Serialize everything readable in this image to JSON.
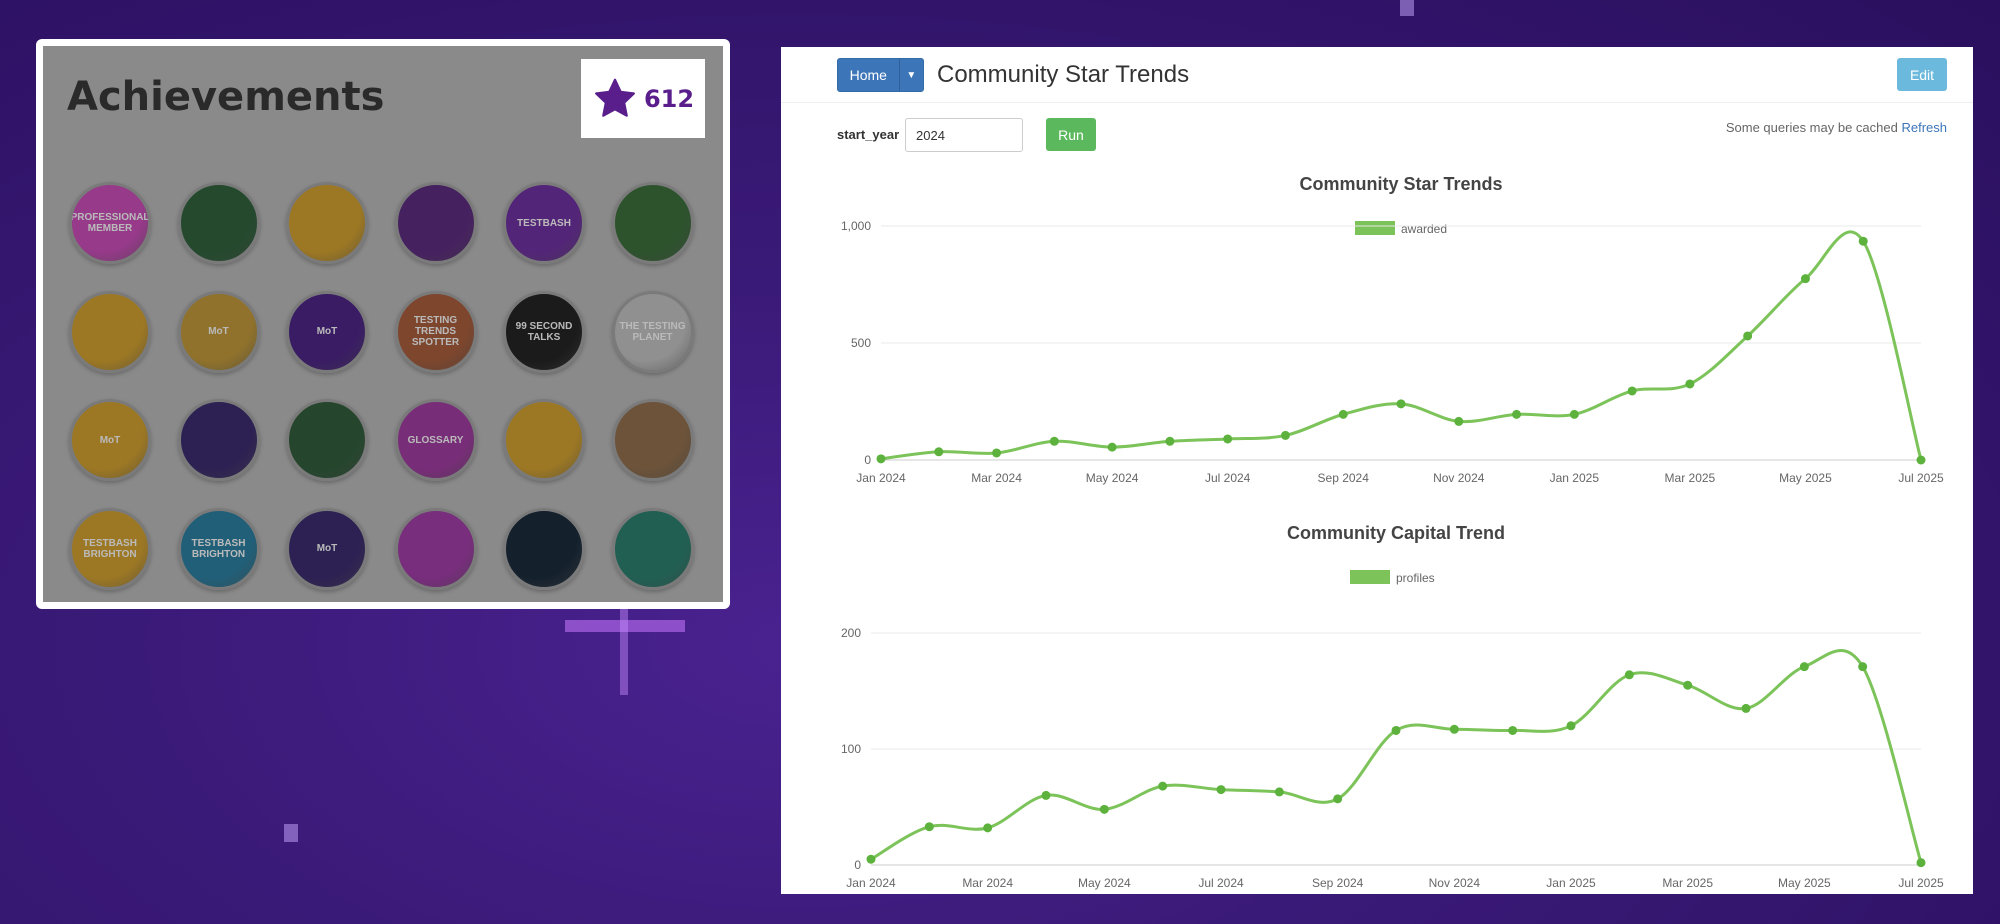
{
  "achievements": {
    "title": "Achievements",
    "star_count": "612",
    "badges": [
      {
        "label": "PROFESSIONAL MEMBER",
        "color": "#c04bb0"
      },
      {
        "label": "",
        "color": "#2e5e3a"
      },
      {
        "label": "",
        "color": "#c99a2e"
      },
      {
        "label": "",
        "color": "#5a2a7a"
      },
      {
        "label": "TESTBASH",
        "color": "#6b2f9a"
      },
      {
        "label": "",
        "color": "#3a6a3a"
      },
      {
        "label": "",
        "color": "#c99a2e"
      },
      {
        "label": "MoT",
        "color": "#b89238"
      },
      {
        "label": "MoT",
        "color": "#4a2480"
      },
      {
        "label": "TESTING TRENDS SPOTTER",
        "color": "#a05a3a"
      },
      {
        "label": "99 SECOND TALKS",
        "color": "#222222"
      },
      {
        "label": "THE TESTING PLANET",
        "color": "#b8b8b8"
      },
      {
        "label": "MoT",
        "color": "#c99a2e"
      },
      {
        "label": "",
        "color": "#3a2a6a"
      },
      {
        "label": "",
        "color": "#2f5a3a"
      },
      {
        "label": "GLOSSARY",
        "color": "#9a3a9a"
      },
      {
        "label": "",
        "color": "#c99a2e"
      },
      {
        "label": "",
        "color": "#8a6a4a"
      },
      {
        "label": "TESTBASH BRIGHTON",
        "color": "#c99a2e"
      },
      {
        "label": "TESTBASH BRIGHTON",
        "color": "#2a7a9a"
      },
      {
        "label": "MoT",
        "color": "#3a2a6a"
      },
      {
        "label": "",
        "color": "#9a3aa0"
      },
      {
        "label": "",
        "color": "#1a2a3a"
      },
      {
        "label": "",
        "color": "#2a7a6a"
      }
    ]
  },
  "dashboard": {
    "home_label": "Home",
    "title": "Community Star Trends",
    "edit_label": "Edit",
    "param_name": "start_year",
    "param_value": "2024",
    "run_label": "Run",
    "cache_note": "Some queries may be cached",
    "refresh_label": "Refresh"
  },
  "chart_data": [
    {
      "type": "line",
      "title": "Community Star Trends",
      "legend": "awarded",
      "x": [
        "Jan 2024",
        "Feb 2024",
        "Mar 2024",
        "Apr 2024",
        "May 2024",
        "Jun 2024",
        "Jul 2024",
        "Aug 2024",
        "Sep 2024",
        "Oct 2024",
        "Nov 2024",
        "Dec 2024",
        "Jan 2025",
        "Feb 2025",
        "Mar 2025",
        "Apr 2025",
        "May 2025",
        "Jun 2025",
        "Jul 2025"
      ],
      "values": [
        5,
        35,
        30,
        80,
        55,
        80,
        90,
        105,
        195,
        240,
        165,
        195,
        195,
        295,
        325,
        530,
        775,
        935,
        0
      ],
      "ylim": [
        0,
        1000
      ],
      "yticks": [
        "0",
        "500",
        "1,000"
      ],
      "xticks": [
        "Jan 2024",
        "Mar 2024",
        "May 2024",
        "Jul 2024",
        "Sep 2024",
        "Nov 2024",
        "Jan 2025",
        "Mar 2025",
        "May 2025",
        "Jul 2025"
      ],
      "color": "#7cc35a"
    },
    {
      "type": "line",
      "title": "Community Capital Trend",
      "legend": "profiles",
      "x": [
        "Jan 2024",
        "Feb 2024",
        "Mar 2024",
        "Apr 2024",
        "May 2024",
        "Jun 2024",
        "Jul 2024",
        "Aug 2024",
        "Sep 2024",
        "Oct 2024",
        "Nov 2024",
        "Dec 2024",
        "Jan 2025",
        "Feb 2025",
        "Mar 2025",
        "Apr 2025",
        "May 2025",
        "Jun 2025",
        "Jul 2025"
      ],
      "values": [
        5,
        33,
        32,
        60,
        48,
        68,
        65,
        63,
        57,
        116,
        117,
        116,
        120,
        164,
        155,
        135,
        171,
        171,
        2
      ],
      "ylim": [
        0,
        200
      ],
      "yticks": [
        "0",
        "100",
        "200"
      ],
      "xticks": [
        "Jan 2024",
        "Mar 2024",
        "May 2024",
        "Jul 2024",
        "Sep 2024",
        "Nov 2024",
        "Jan 2025",
        "Mar 2025",
        "May 2025",
        "Jul 2025"
      ],
      "color": "#7cc35a"
    }
  ]
}
